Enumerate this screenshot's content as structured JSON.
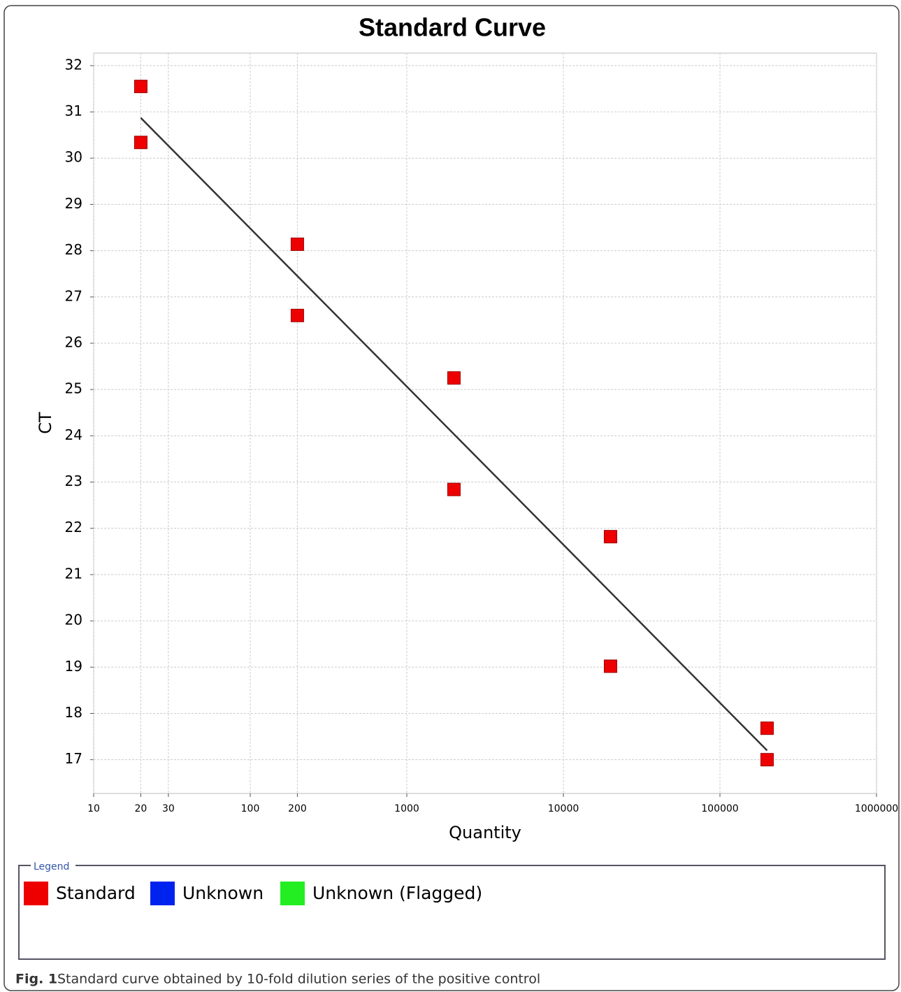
{
  "chart_data": {
    "type": "scatter",
    "title": "Standard Curve",
    "x_label": "Quantity",
    "y_label": "CT",
    "log_x": true,
    "grid": true,
    "xlim": [
      10,
      1000000
    ],
    "xticks": [
      10,
      20,
      30,
      100,
      200,
      1000,
      10000,
      100000,
      1000000
    ],
    "ylim": [
      16.27,
      32.27
    ],
    "yticks": [
      17,
      18,
      19,
      20,
      21,
      22,
      23,
      24,
      25,
      26,
      27,
      28,
      29,
      30,
      31,
      32
    ],
    "series": [
      {
        "name": "Standard",
        "color": "#ee0000",
        "x": [
          20,
          20,
          200,
          200,
          2000,
          2000,
          20000,
          20000,
          200000,
          200000
        ],
        "values": [
          31.55,
          30.34,
          28.14,
          26.6,
          25.25,
          22.84,
          21.82,
          19.02,
          17.68,
          17.0
        ]
      }
    ],
    "trendline": {
      "x": [
        20,
        200000
      ],
      "values": [
        30.87,
        17.2
      ],
      "color": "#333333"
    },
    "legend": {
      "title": "Legend",
      "items": [
        {
          "name": "Standard",
          "color": "#ee0000"
        },
        {
          "name": "Unknown",
          "color": "#0022ee"
        },
        {
          "name": "Unknown (Flagged)",
          "color": "#22ee22"
        }
      ]
    }
  },
  "caption": {
    "label": "Fig. 1",
    "text": "Standard curve obtained by 10-fold dilution series of the positive control"
  }
}
